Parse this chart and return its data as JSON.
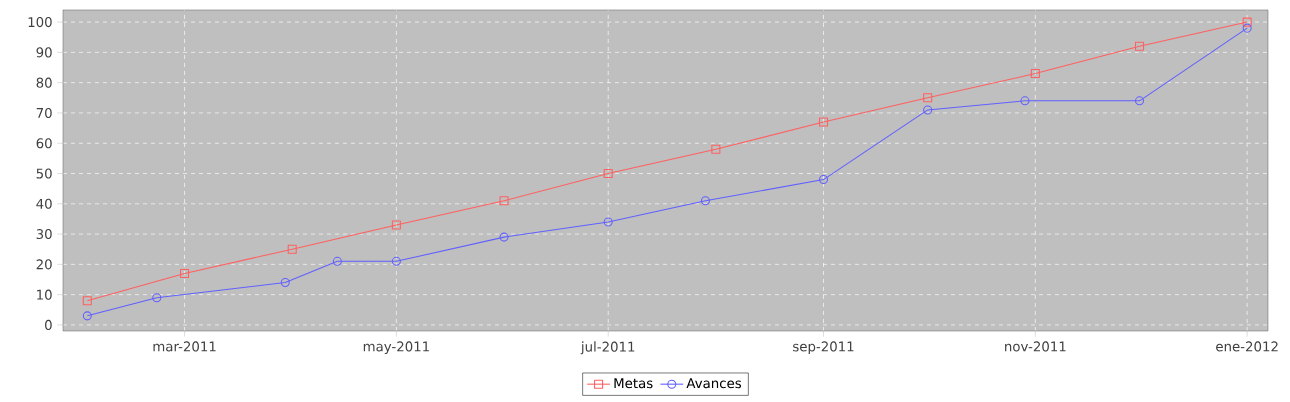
{
  "chart_data": {
    "type": "line",
    "series": [
      {
        "name": "Metas",
        "color": "#ff6060",
        "marker": "square",
        "x": [
          "2011-02-01",
          "2011-03-01",
          "2011-04-01",
          "2011-05-01",
          "2011-06-01",
          "2011-07-01",
          "2011-08-01",
          "2011-09-01",
          "2011-10-01",
          "2011-11-01",
          "2011-12-01",
          "2012-01-01"
        ],
        "values": [
          8,
          17,
          25,
          33,
          41,
          50,
          58,
          67,
          75,
          83,
          92,
          100
        ]
      },
      {
        "name": "Avances",
        "color": "#6060ff",
        "marker": "circle",
        "x": [
          "2011-02-01",
          "2011-02-21",
          "2011-03-30",
          "2011-04-14",
          "2011-05-01",
          "2011-06-01",
          "2011-07-01",
          "2011-07-29",
          "2011-09-01",
          "2011-10-01",
          "2011-10-29",
          "2011-12-01",
          "2012-01-01"
        ],
        "values": [
          3,
          9,
          14,
          21,
          21,
          29,
          34,
          41,
          48,
          71,
          74,
          74,
          98
        ]
      }
    ],
    "xlim": [
      "2011-01-25",
      "2012-01-07"
    ],
    "xticks": [
      {
        "value": "2011-03-01",
        "label": "mar-2011"
      },
      {
        "value": "2011-05-01",
        "label": "may-2011"
      },
      {
        "value": "2011-07-01",
        "label": "jul-2011"
      },
      {
        "value": "2011-09-01",
        "label": "sep-2011"
      },
      {
        "value": "2011-11-01",
        "label": "nov-2011"
      },
      {
        "value": "2012-01-01",
        "label": "ene-2012"
      }
    ],
    "ylim": [
      -2,
      104
    ],
    "yticks": [
      0,
      10,
      20,
      30,
      40,
      50,
      60,
      70,
      80,
      90,
      100
    ],
    "grid": true,
    "legend": "bottom"
  }
}
